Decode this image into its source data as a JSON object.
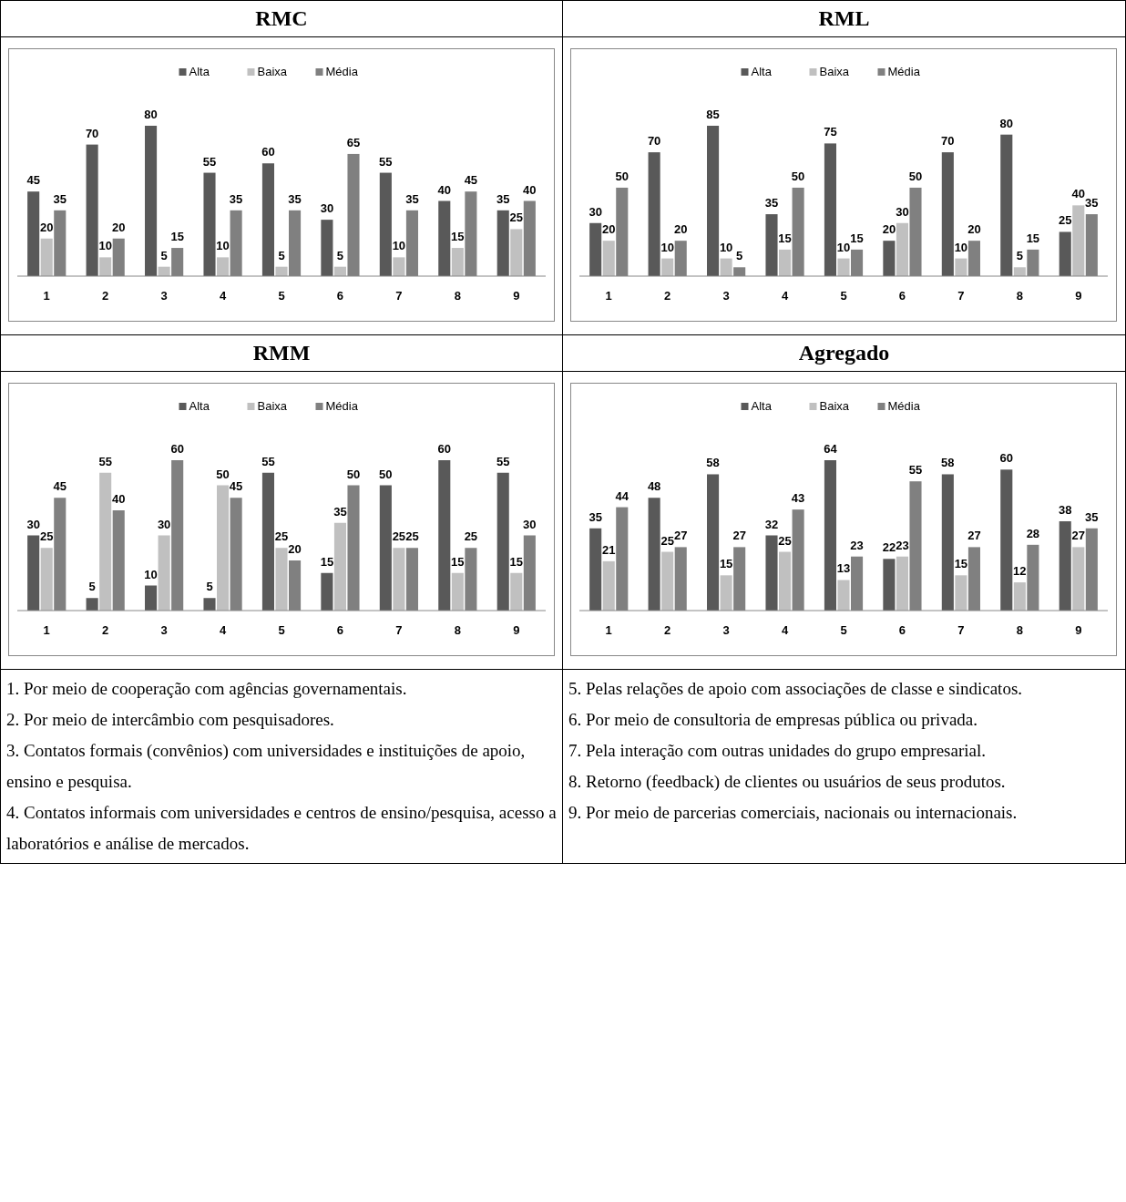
{
  "chart_data": [
    {
      "type": "bar",
      "title": "RMC",
      "categories": [
        "1",
        "2",
        "3",
        "4",
        "5",
        "6",
        "7",
        "8",
        "9"
      ],
      "legend": "top",
      "data_labels": true,
      "series": [
        {
          "name": "Alta",
          "color": "#595959",
          "values": [
            45,
            70,
            80,
            55,
            60,
            30,
            55,
            40,
            35
          ]
        },
        {
          "name": "Baixa",
          "color": "#c0c0c0",
          "values": [
            20,
            10,
            5,
            10,
            5,
            5,
            10,
            15,
            25
          ]
        },
        {
          "name": "Média",
          "color": "#808080",
          "values": [
            35,
            20,
            15,
            35,
            35,
            65,
            35,
            45,
            40
          ]
        }
      ]
    },
    {
      "type": "bar",
      "title": "RML",
      "categories": [
        "1",
        "2",
        "3",
        "4",
        "5",
        "6",
        "7",
        "8",
        "9"
      ],
      "legend": "top",
      "data_labels": true,
      "series": [
        {
          "name": "Alta",
          "color": "#595959",
          "values": [
            30,
            70,
            85,
            35,
            75,
            20,
            70,
            80,
            25
          ]
        },
        {
          "name": "Baixa",
          "color": "#c0c0c0",
          "values": [
            20,
            10,
            10,
            15,
            10,
            30,
            10,
            5,
            40
          ]
        },
        {
          "name": "Média",
          "color": "#808080",
          "values": [
            50,
            20,
            5,
            50,
            15,
            50,
            20,
            15,
            35
          ]
        }
      ]
    },
    {
      "type": "bar",
      "title": "RMM",
      "categories": [
        "1",
        "2",
        "3",
        "4",
        "5",
        "6",
        "7",
        "8",
        "9"
      ],
      "legend": "top",
      "data_labels": true,
      "series": [
        {
          "name": "Alta",
          "color": "#595959",
          "values": [
            30,
            5,
            10,
            5,
            55,
            15,
            50,
            60,
            55
          ]
        },
        {
          "name": "Baixa",
          "color": "#c0c0c0",
          "values": [
            25,
            55,
            30,
            50,
            25,
            35,
            25,
            15,
            15
          ]
        },
        {
          "name": "Média",
          "color": "#808080",
          "values": [
            45,
            40,
            60,
            45,
            20,
            50,
            25,
            25,
            30
          ]
        }
      ]
    },
    {
      "type": "bar",
      "title": "Agregado",
      "categories": [
        "1",
        "2",
        "3",
        "4",
        "5",
        "6",
        "7",
        "8",
        "9"
      ],
      "legend": "top",
      "data_labels": true,
      "series": [
        {
          "name": "Alta",
          "color": "#595959",
          "values": [
            35,
            48,
            58,
            32,
            64,
            22,
            58,
            60,
            38
          ]
        },
        {
          "name": "Baixa",
          "color": "#c0c0c0",
          "values": [
            21,
            25,
            15,
            25,
            13,
            23,
            15,
            12,
            27
          ]
        },
        {
          "name": "Média",
          "color": "#808080",
          "values": [
            44,
            27,
            27,
            43,
            23,
            55,
            27,
            28,
            35
          ]
        }
      ]
    },
    {
      "type": "other",
      "annotations": [
        "1. Por meio de cooperação com agências governamentais.",
        "2. Por meio de intercâmbio com pesquisadores.",
        "3. Contatos formais (convênios) com universidades e instituições de apoio, ensino e pesquisa.",
        "4. Contatos informais com universidades e centros de ensino/pesquisa, acesso a laboratórios e análise de mercados.",
        "5. Pelas relações de apoio com associações de classe e sindicatos.",
        "6. Por meio de consultoria de empresas pública ou privada.",
        "7. Pela interação com outras unidades do grupo empresarial.",
        "8. Retorno (feedback) de clientes ou usuários de seus produtos.",
        "9. Por meio de parcerias comerciais, nacionais ou internacionais."
      ]
    }
  ]
}
